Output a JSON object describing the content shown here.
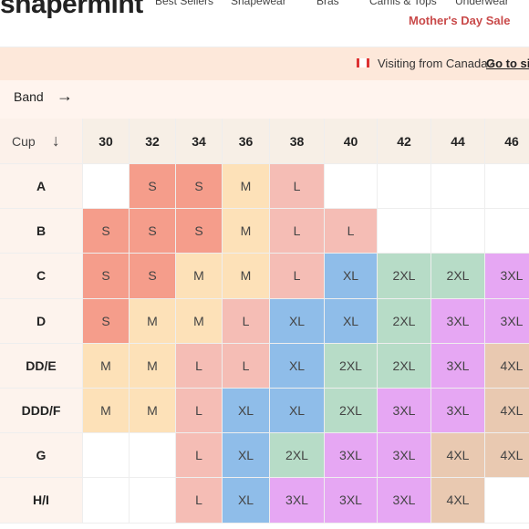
{
  "header": {
    "logo": "shapermint",
    "nav": [
      "Best Sellers",
      "Shapewear",
      "Bras",
      "Camis & Tops",
      "Underwear"
    ],
    "promo": "Mother's Day Sale"
  },
  "banner": {
    "text": "Visiting from Canada?",
    "link": "Go to site"
  },
  "table": {
    "band_label": "Band",
    "cup_label": "Cup",
    "columns": [
      "30",
      "32",
      "34",
      "36",
      "38",
      "40",
      "42",
      "44",
      "46"
    ],
    "rows": [
      {
        "cup": "A",
        "cells": [
          null,
          {
            "text": "S",
            "color": "#f59d8b"
          },
          {
            "text": "S",
            "color": "#f59d8b"
          },
          {
            "text": "M",
            "color": "#fde1b8"
          },
          {
            "text": "L",
            "color": "#f5bdb5"
          },
          null,
          null,
          null,
          null
        ]
      },
      {
        "cup": "B",
        "cells": [
          {
            "text": "S",
            "color": "#f59d8b"
          },
          {
            "text": "S",
            "color": "#f59d8b"
          },
          {
            "text": "S",
            "color": "#f59d8b"
          },
          {
            "text": "M",
            "color": "#fde1b8"
          },
          {
            "text": "L",
            "color": "#f5bdb5"
          },
          {
            "text": "L",
            "color": "#f5bdb5"
          },
          null,
          null,
          null
        ]
      },
      {
        "cup": "C",
        "cells": [
          {
            "text": "S",
            "color": "#f59d8b"
          },
          {
            "text": "S",
            "color": "#f59d8b"
          },
          {
            "text": "M",
            "color": "#fde1b8"
          },
          {
            "text": "M",
            "color": "#fde1b8"
          },
          {
            "text": "L",
            "color": "#f5bdb5"
          },
          {
            "text": "XL",
            "color": "#8fbde9"
          },
          {
            "text": "2XL",
            "color": "#b7dcc7"
          },
          {
            "text": "2XL",
            "color": "#b7dcc7"
          },
          {
            "text": "3XL",
            "color": "#e6a7f3"
          }
        ]
      },
      {
        "cup": "D",
        "cells": [
          {
            "text": "S",
            "color": "#f59d8b"
          },
          {
            "text": "M",
            "color": "#fde1b8"
          },
          {
            "text": "M",
            "color": "#fde1b8"
          },
          {
            "text": "L",
            "color": "#f5bdb5"
          },
          {
            "text": "XL",
            "color": "#8fbde9"
          },
          {
            "text": "XL",
            "color": "#8fbde9"
          },
          {
            "text": "2XL",
            "color": "#b7dcc7"
          },
          {
            "text": "3XL",
            "color": "#e6a7f3"
          },
          {
            "text": "3XL",
            "color": "#e6a7f3"
          }
        ]
      },
      {
        "cup": "DD/E",
        "cells": [
          {
            "text": "M",
            "color": "#fde1b8"
          },
          {
            "text": "M",
            "color": "#fde1b8"
          },
          {
            "text": "L",
            "color": "#f5bdb5"
          },
          {
            "text": "L",
            "color": "#f5bdb5"
          },
          {
            "text": "XL",
            "color": "#8fbde9"
          },
          {
            "text": "2XL",
            "color": "#b7dcc7"
          },
          {
            "text": "2XL",
            "color": "#b7dcc7"
          },
          {
            "text": "3XL",
            "color": "#e6a7f3"
          },
          {
            "text": "4XL",
            "color": "#e9c9b1"
          }
        ]
      },
      {
        "cup": "DDD/F",
        "cells": [
          {
            "text": "M",
            "color": "#fde1b8"
          },
          {
            "text": "M",
            "color": "#fde1b8"
          },
          {
            "text": "L",
            "color": "#f5bdb5"
          },
          {
            "text": "XL",
            "color": "#8fbde9"
          },
          {
            "text": "XL",
            "color": "#8fbde9"
          },
          {
            "text": "2XL",
            "color": "#b7dcc7"
          },
          {
            "text": "3XL",
            "color": "#e6a7f3"
          },
          {
            "text": "3XL",
            "color": "#e6a7f3"
          },
          {
            "text": "4XL",
            "color": "#e9c9b1"
          }
        ]
      },
      {
        "cup": "G",
        "cells": [
          null,
          null,
          {
            "text": "L",
            "color": "#f5bdb5"
          },
          {
            "text": "XL",
            "color": "#8fbde9"
          },
          {
            "text": "2XL",
            "color": "#b7dcc7"
          },
          {
            "text": "3XL",
            "color": "#e6a7f3"
          },
          {
            "text": "3XL",
            "color": "#e6a7f3"
          },
          {
            "text": "4XL",
            "color": "#e9c9b1"
          },
          {
            "text": "4XL",
            "color": "#e9c9b1"
          }
        ]
      },
      {
        "cup": "H/I",
        "cells": [
          null,
          null,
          {
            "text": "L",
            "color": "#f5bdb5"
          },
          {
            "text": "XL",
            "color": "#8fbde9"
          },
          {
            "text": "3XL",
            "color": "#e6a7f3"
          },
          {
            "text": "3XL",
            "color": "#e6a7f3"
          },
          {
            "text": "3XL",
            "color": "#e6a7f3"
          },
          {
            "text": "4XL",
            "color": "#e9c9b1"
          },
          null
        ]
      }
    ]
  }
}
